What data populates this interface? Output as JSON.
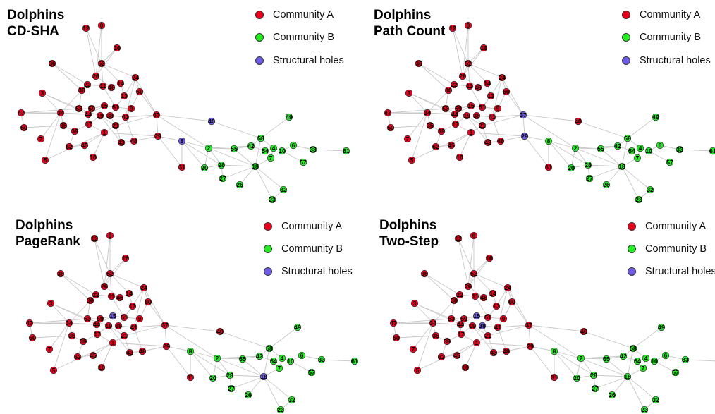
{
  "colors": {
    "A": "#e8001c",
    "B": "#22ee22",
    "H": "#6e5ce6"
  },
  "panels": [
    {
      "title_line1": "Dolphins",
      "title_line2": "CD-SHA",
      "legend": {
        "a": "Community A",
        "b": "Community B",
        "holes": "Structural holes"
      },
      "holes": [
        "8",
        "40"
      ]
    },
    {
      "title_line1": "Dolphins",
      "title_line2": "Path Count",
      "legend": {
        "a": "Community A",
        "b": "Community B",
        "holes": "Structural holes"
      },
      "holes": [
        "37",
        "29"
      ]
    },
    {
      "title_line1": "Dolphins",
      "title_line2": "PageRank",
      "legend": {
        "a": "Community A",
        "b": "Community B",
        "holes": "Structural holes"
      },
      "holes": [
        "15",
        "18"
      ]
    },
    {
      "title_line1": "Dolphins",
      "title_line2": "Two-Step",
      "legend": {
        "a": "Community A",
        "b": "Community B",
        "holes": "Structural holes"
      },
      "holes": [
        "15",
        "38"
      ]
    }
  ],
  "nodes": [
    {
      "id": "12",
      "c": "A"
    },
    {
      "id": "0",
      "c": "A"
    },
    {
      "id": "16",
      "c": "A"
    },
    {
      "id": "36",
      "c": "A"
    },
    {
      "id": "52",
      "c": "A"
    },
    {
      "id": "26",
      "c": "A"
    },
    {
      "id": "24",
      "c": "A"
    },
    {
      "id": "22",
      "c": "A"
    },
    {
      "id": "11",
      "c": "A"
    },
    {
      "id": "46",
      "c": "A"
    },
    {
      "id": "14",
      "c": "A"
    },
    {
      "id": "30",
      "c": "A"
    },
    {
      "id": "60",
      "c": "A"
    },
    {
      "id": "3",
      "c": "A"
    },
    {
      "id": "13",
      "c": "A"
    },
    {
      "id": "47",
      "c": "A"
    },
    {
      "id": "50",
      "c": "A"
    },
    {
      "id": "34",
      "c": "A"
    },
    {
      "id": "53",
      "c": "A"
    },
    {
      "id": "59",
      "c": "A"
    },
    {
      "id": "44",
      "c": "A"
    },
    {
      "id": "35",
      "c": "A"
    },
    {
      "id": "19",
      "c": "A"
    },
    {
      "id": "39",
      "c": "A"
    },
    {
      "id": "38",
      "c": "A"
    },
    {
      "id": "15",
      "c": "A"
    },
    {
      "id": "51",
      "c": "A"
    },
    {
      "id": "9",
      "c": "A"
    },
    {
      "id": "17",
      "c": "A"
    },
    {
      "id": "21",
      "c": "A"
    },
    {
      "id": "41",
      "c": "A"
    },
    {
      "id": "1",
      "c": "A"
    },
    {
      "id": "45",
      "c": "A"
    },
    {
      "id": "62",
      "c": "A"
    },
    {
      "id": "43",
      "c": "A"
    },
    {
      "id": "48",
      "c": "A"
    },
    {
      "id": "37",
      "c": "A"
    },
    {
      "id": "29",
      "c": "A"
    },
    {
      "id": "5",
      "c": "A"
    },
    {
      "id": "10",
      "c": "A"
    },
    {
      "id": "7",
      "c": "A"
    },
    {
      "id": "40",
      "c": "A"
    },
    {
      "id": "8",
      "c": "B"
    },
    {
      "id": "31",
      "c": "A"
    },
    {
      "id": "2",
      "c": "B"
    },
    {
      "id": "20",
      "c": "B"
    },
    {
      "id": "28",
      "c": "B"
    },
    {
      "id": "27",
      "c": "B"
    },
    {
      "id": "55",
      "c": "B"
    },
    {
      "id": "26b",
      "label": "26",
      "c": "B"
    },
    {
      "id": "42",
      "c": "B"
    },
    {
      "id": "58",
      "c": "B"
    },
    {
      "id": "18",
      "c": "B"
    },
    {
      "id": "49",
      "c": "B"
    },
    {
      "id": "54",
      "c": "B"
    },
    {
      "id": "4",
      "c": "B"
    },
    {
      "id": "10b",
      "label": "10",
      "c": "B"
    },
    {
      "id": "6",
      "c": "B"
    },
    {
      "id": "33",
      "c": "B"
    },
    {
      "id": "61",
      "c": "B"
    },
    {
      "id": "57",
      "c": "B"
    },
    {
      "id": "7b",
      "label": "7",
      "c": "B"
    },
    {
      "id": "32",
      "c": "B"
    },
    {
      "id": "23",
      "c": "B"
    }
  ]
}
